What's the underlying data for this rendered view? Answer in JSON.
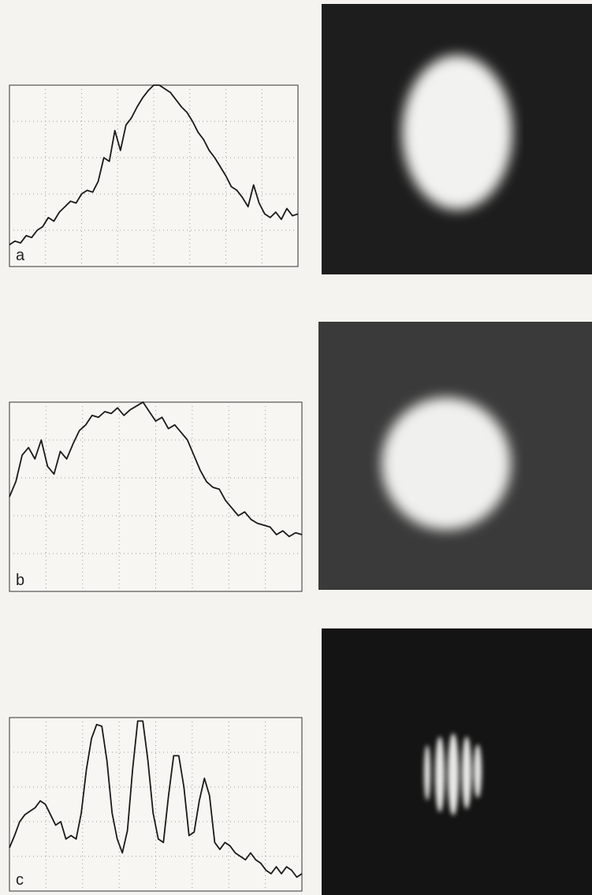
{
  "chart_data": [
    {
      "type": "line",
      "label": "a",
      "color": "#1a1a1a",
      "grid": true,
      "ylim": [
        0,
        100
      ],
      "yticks": [
        20,
        40,
        60,
        80
      ],
      "xlim": [
        0,
        100
      ],
      "xticks": [
        12.5,
        25,
        37.5,
        50,
        62.5,
        75,
        87.5
      ],
      "values": [
        12,
        14,
        13,
        17,
        16,
        20,
        22,
        27,
        25,
        30,
        33,
        36,
        35,
        40,
        42,
        41,
        47,
        60,
        58,
        75,
        64,
        78,
        82,
        88,
        93,
        97,
        100,
        100,
        98,
        96,
        92,
        88,
        85,
        80,
        74,
        70,
        64,
        60,
        55,
        50,
        44,
        42,
        38,
        33,
        45,
        35,
        29,
        27,
        30,
        26,
        32,
        28,
        29
      ]
    },
    {
      "type": "line",
      "label": "b",
      "color": "#1a1a1a",
      "grid": true,
      "ylim": [
        0,
        100
      ],
      "yticks": [
        20,
        40,
        60,
        80
      ],
      "xlim": [
        0,
        100
      ],
      "xticks": [
        12.5,
        25,
        37.5,
        50,
        62.5,
        75,
        87.5
      ],
      "values": [
        50,
        58,
        72,
        76,
        70,
        80,
        66,
        62,
        74,
        70,
        78,
        85,
        88,
        93,
        92,
        95,
        94,
        97,
        93,
        96,
        98,
        100,
        95,
        90,
        92,
        86,
        88,
        84,
        80,
        72,
        64,
        58,
        55,
        54,
        48,
        44,
        40,
        42,
        38,
        36,
        35,
        34,
        30,
        32,
        29,
        31,
        30
      ]
    },
    {
      "type": "line",
      "label": "c",
      "color": "#1a1a1a",
      "grid": true,
      "ylim": [
        0,
        100
      ],
      "yticks": [
        20,
        40,
        60,
        80
      ],
      "xlim": [
        0,
        100
      ],
      "xticks": [
        12.5,
        25,
        37.5,
        50,
        62.5,
        75,
        87.5
      ],
      "values": [
        25,
        32,
        40,
        44,
        46,
        48,
        52,
        50,
        44,
        38,
        40,
        30,
        32,
        30,
        45,
        70,
        88,
        96,
        95,
        75,
        45,
        30,
        22,
        35,
        70,
        98,
        98,
        75,
        45,
        30,
        28,
        55,
        78,
        78,
        60,
        32,
        34,
        52,
        65,
        55,
        28,
        24,
        28,
        26,
        22,
        20,
        18,
        22,
        18,
        16,
        12,
        10,
        14,
        10,
        14,
        12,
        8,
        10
      ]
    }
  ]
}
